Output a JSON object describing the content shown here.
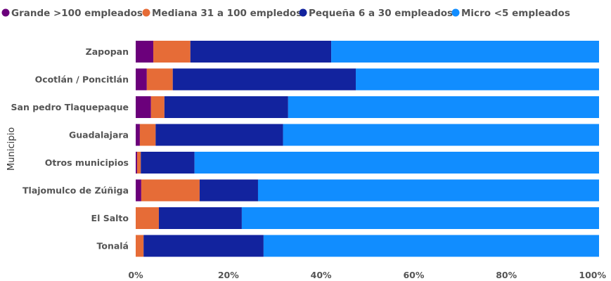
{
  "chart_data": {
    "type": "bar",
    "orientation": "horizontal",
    "stacked": "percent",
    "ylabel": "Municipio",
    "xlim": [
      0,
      100
    ],
    "x_ticks": [
      "0%",
      "20%",
      "40%",
      "60%",
      "80%",
      "100%"
    ],
    "legend_position": "top-left",
    "grid": false,
    "categories": [
      "Zapopan",
      "Ocotlán / Poncitlán",
      "San pedro Tlaquepaque",
      "Guadalajara",
      "Otros municipios",
      "Tlajomulco de Zúñiga",
      "El Salto",
      "Tonalá"
    ],
    "series": [
      {
        "name": "Grande >100 empleados",
        "color": "#6B007B",
        "values": [
          3.8,
          2.4,
          3.3,
          0.9,
          0.3,
          1.2,
          0.0,
          0.0
        ]
      },
      {
        "name": "Mediana 31 a 100 empledos",
        "color": "#E66C37",
        "values": [
          8.0,
          5.6,
          2.9,
          3.4,
          0.8,
          12.6,
          5.0,
          1.7
        ]
      },
      {
        "name": "Pequeña 6 a 30 empleados",
        "color": "#12239E",
        "values": [
          30.4,
          39.5,
          26.7,
          27.5,
          11.6,
          12.6,
          17.9,
          25.9
        ]
      },
      {
        "name": "Micro <5 empleados",
        "color": "#118DFF",
        "values": [
          57.8,
          52.5,
          67.1,
          68.2,
          87.3,
          73.6,
          77.1,
          72.4
        ]
      }
    ]
  }
}
